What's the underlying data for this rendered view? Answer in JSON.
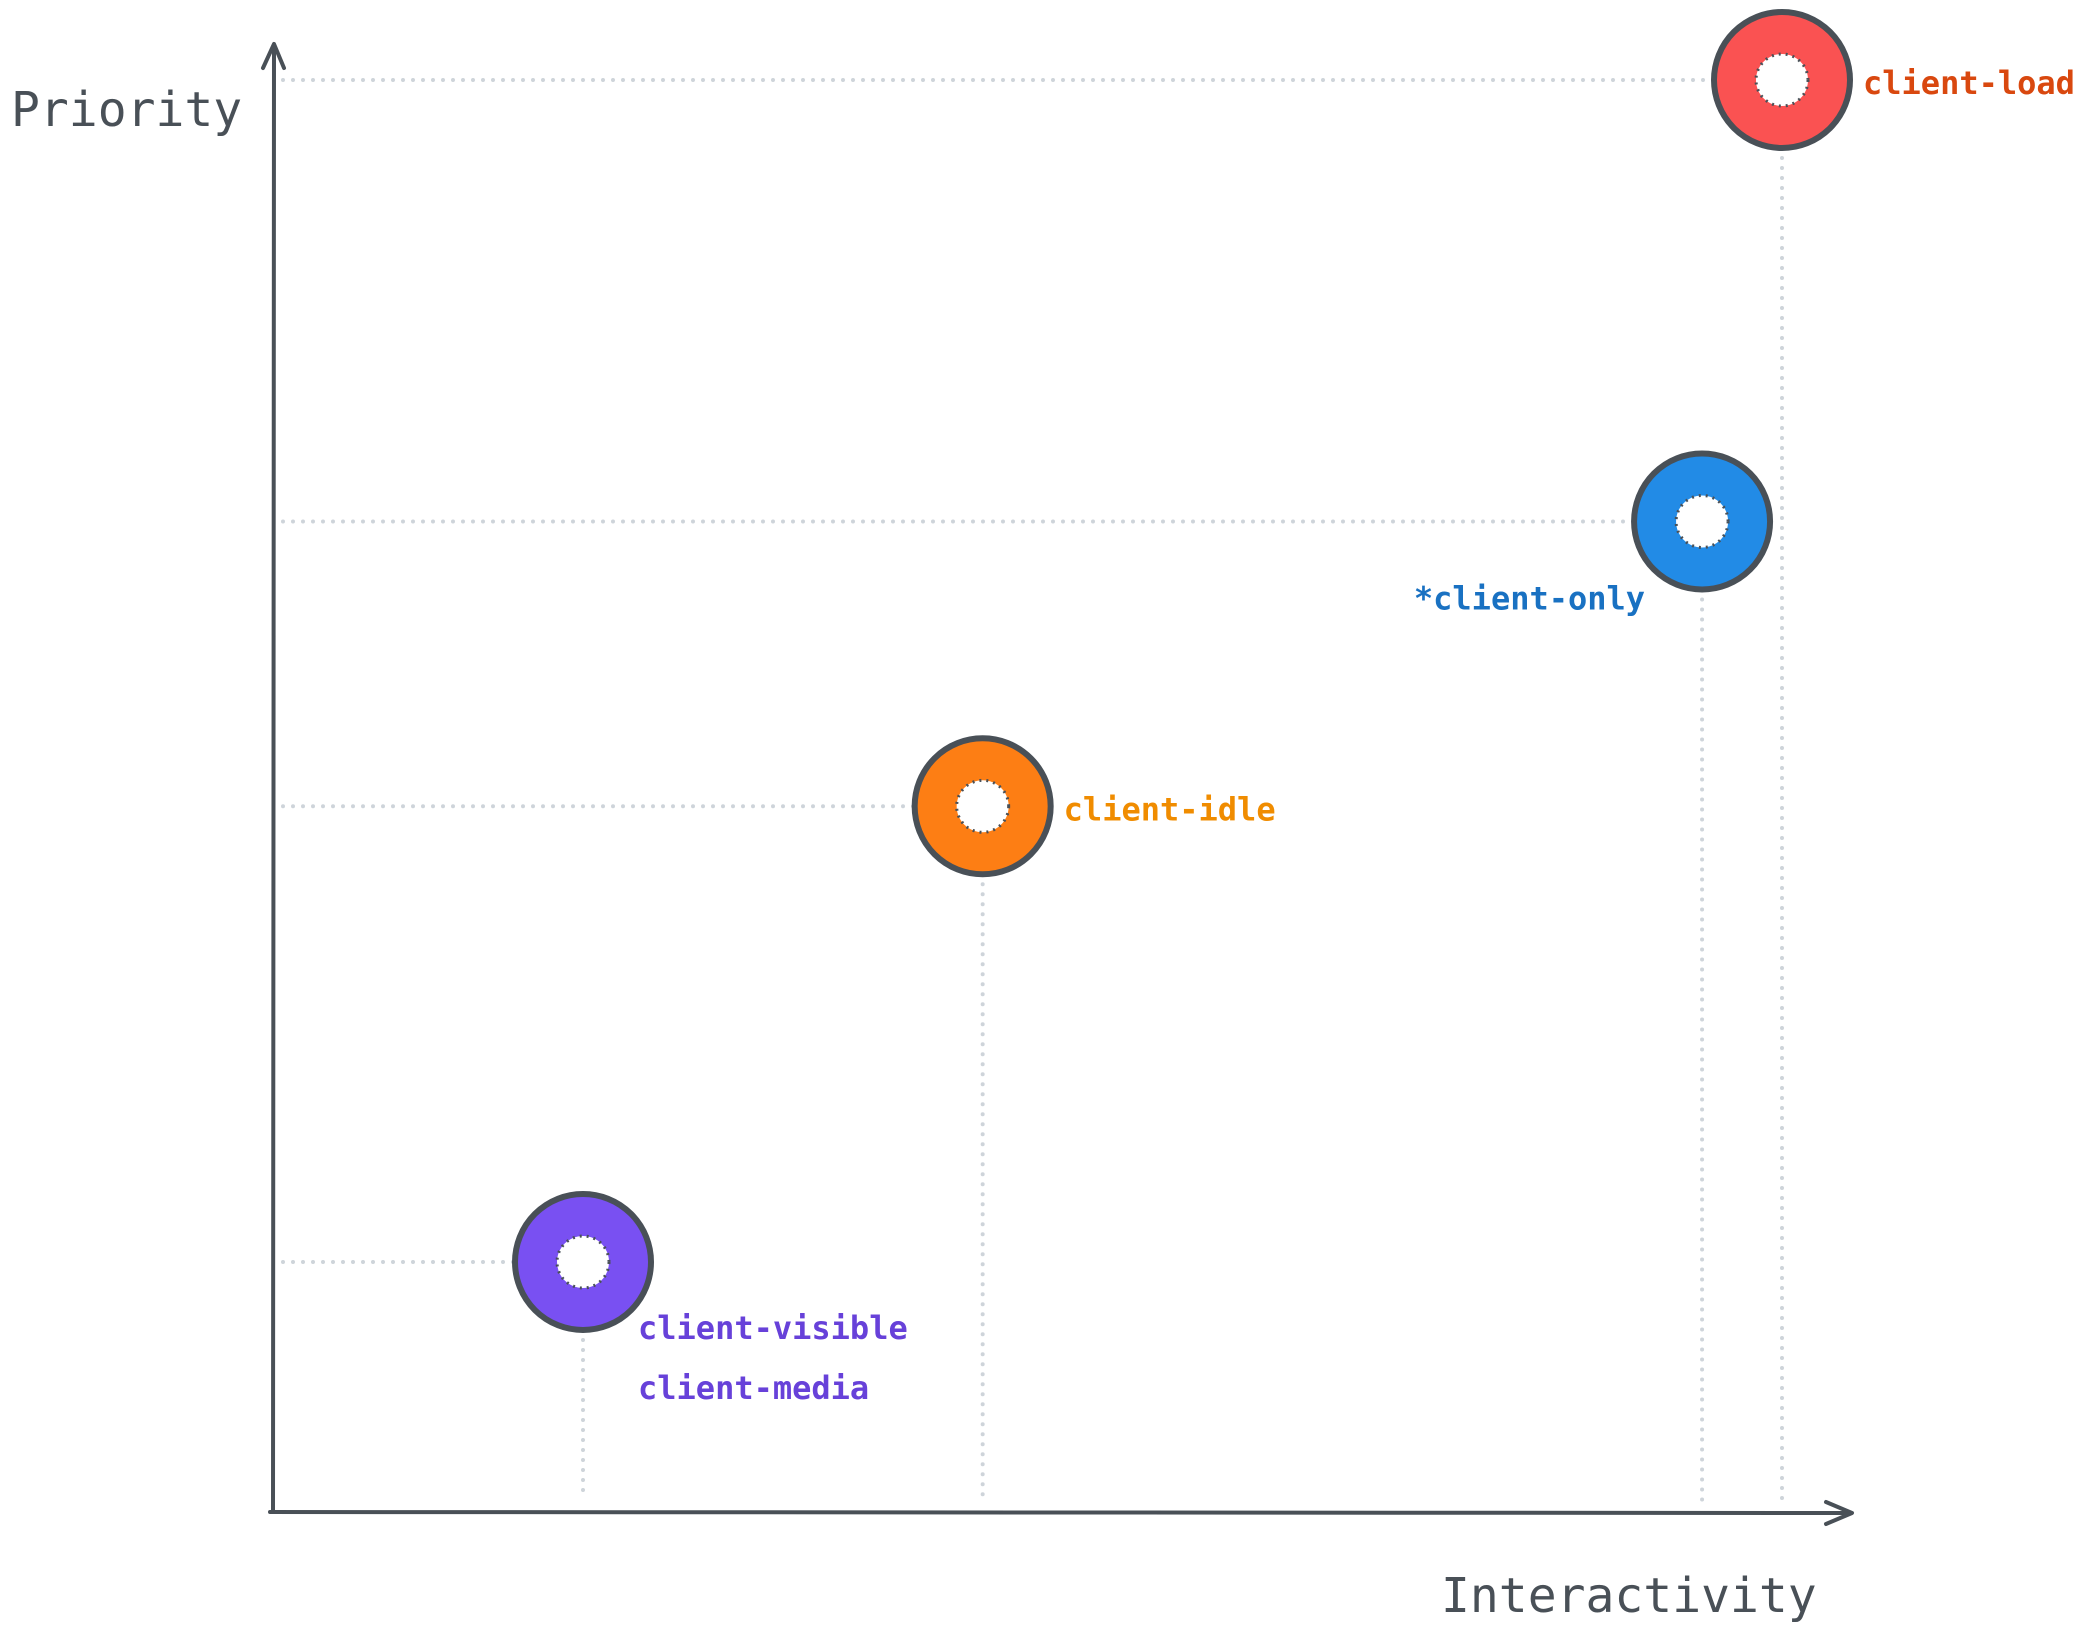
{
  "chart_data": {
    "type": "scatter",
    "xlabel": "Interactivity",
    "ylabel": "Priority",
    "xlim": [
      0,
      100
    ],
    "ylim": [
      0,
      100
    ],
    "grid": false,
    "axis_color": "#495057",
    "points": [
      {
        "labels": [
          "client-load"
        ],
        "x": 95,
        "y": 100,
        "fill": "#fa5252",
        "label_color": "#d9480f",
        "label_side": "right"
      },
      {
        "labels": [
          "*client-only"
        ],
        "x": 90,
        "y": 69,
        "fill": "#228be6",
        "label_color": "#1971c2",
        "label_side": "below-left"
      },
      {
        "labels": [
          "client-idle"
        ],
        "x": 45,
        "y": 49,
        "fill": "#fd7e14",
        "label_color": "#f08c00",
        "label_side": "right"
      },
      {
        "labels": [
          "client-visible",
          "client-media"
        ],
        "x": 20,
        "y": 17,
        "fill": "#7950f2",
        "label_color": "#6741d9",
        "label_side": "below-right"
      }
    ]
  }
}
